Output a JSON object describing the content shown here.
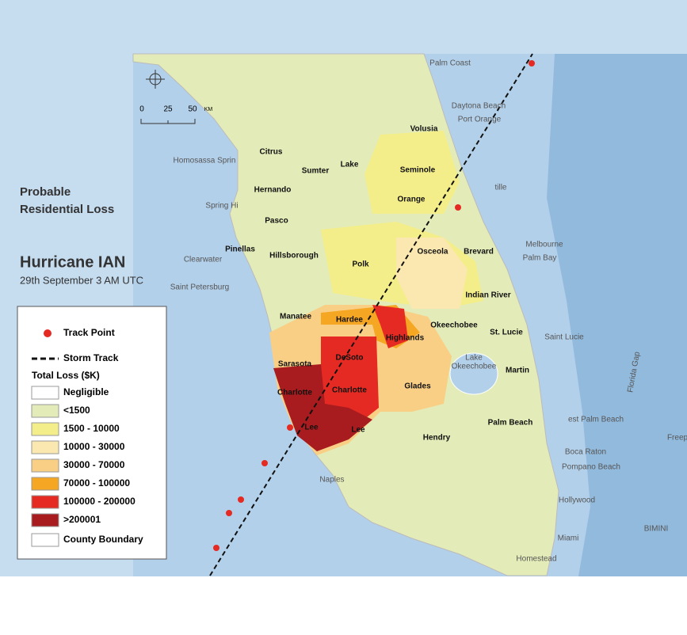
{
  "title": {
    "line1": "Probable",
    "line2": "Residential Loss",
    "name": "Hurricane IAN",
    "date": "29th September 3 AM UTC"
  },
  "scale": {
    "labels": [
      "0",
      "25",
      "50"
    ],
    "unit": "KM"
  },
  "legend": {
    "track_point": "Track Point",
    "storm_track": "Storm Track",
    "heading": "Total Loss ($K)",
    "classes": [
      {
        "label": "Negligible",
        "color": "#ffffff"
      },
      {
        "label": "<1500",
        "color": "#e3ecb8"
      },
      {
        "label": "1500 - 10000",
        "color": "#f4ee8a"
      },
      {
        "label": "10000 - 30000",
        "color": "#fbe7b0"
      },
      {
        "label": "30000 - 70000",
        "color": "#f9cf86"
      },
      {
        "label": "70000 - 100000",
        "color": "#f5a623"
      },
      {
        "label": "100000 - 200000",
        "color": "#e42a22"
      },
      {
        "label": ">200001",
        "color": "#a81c1f"
      }
    ],
    "boundary": "County Boundary"
  },
  "counties": [
    "Volusia",
    "Citrus",
    "Sumter",
    "Lake",
    "Seminole",
    "Hernando",
    "Orange",
    "Pasco",
    "Pinellas",
    "Hillsborough",
    "Polk",
    "Osceola",
    "Brevard",
    "Indian River",
    "Manatee",
    "Hardee",
    "Highlands",
    "Okeechobee",
    "St. Lucie",
    "Sarasota",
    "DeSoto",
    "Charlotte",
    "Charlotte",
    "Glades",
    "Martin",
    "Lee",
    "Lee",
    "Hendry",
    "Palm Beach"
  ],
  "places": [
    "Palm Coast",
    "Daytona Beach",
    "Port Orange",
    "Homosassa Sprin",
    "Spring Hi",
    "Clearwater",
    "Saint Petersburg",
    "tille",
    "Melbourne",
    "Palm Bay",
    "Saint Lucie",
    "Lake",
    "Okeechobee",
    "Florida Gap",
    "est Palm Beach",
    "Boca Raton",
    "Pompano Beach",
    "Hollywood",
    "Miami",
    "Homestead",
    "BIMINI",
    "Naples",
    "Freep"
  ]
}
